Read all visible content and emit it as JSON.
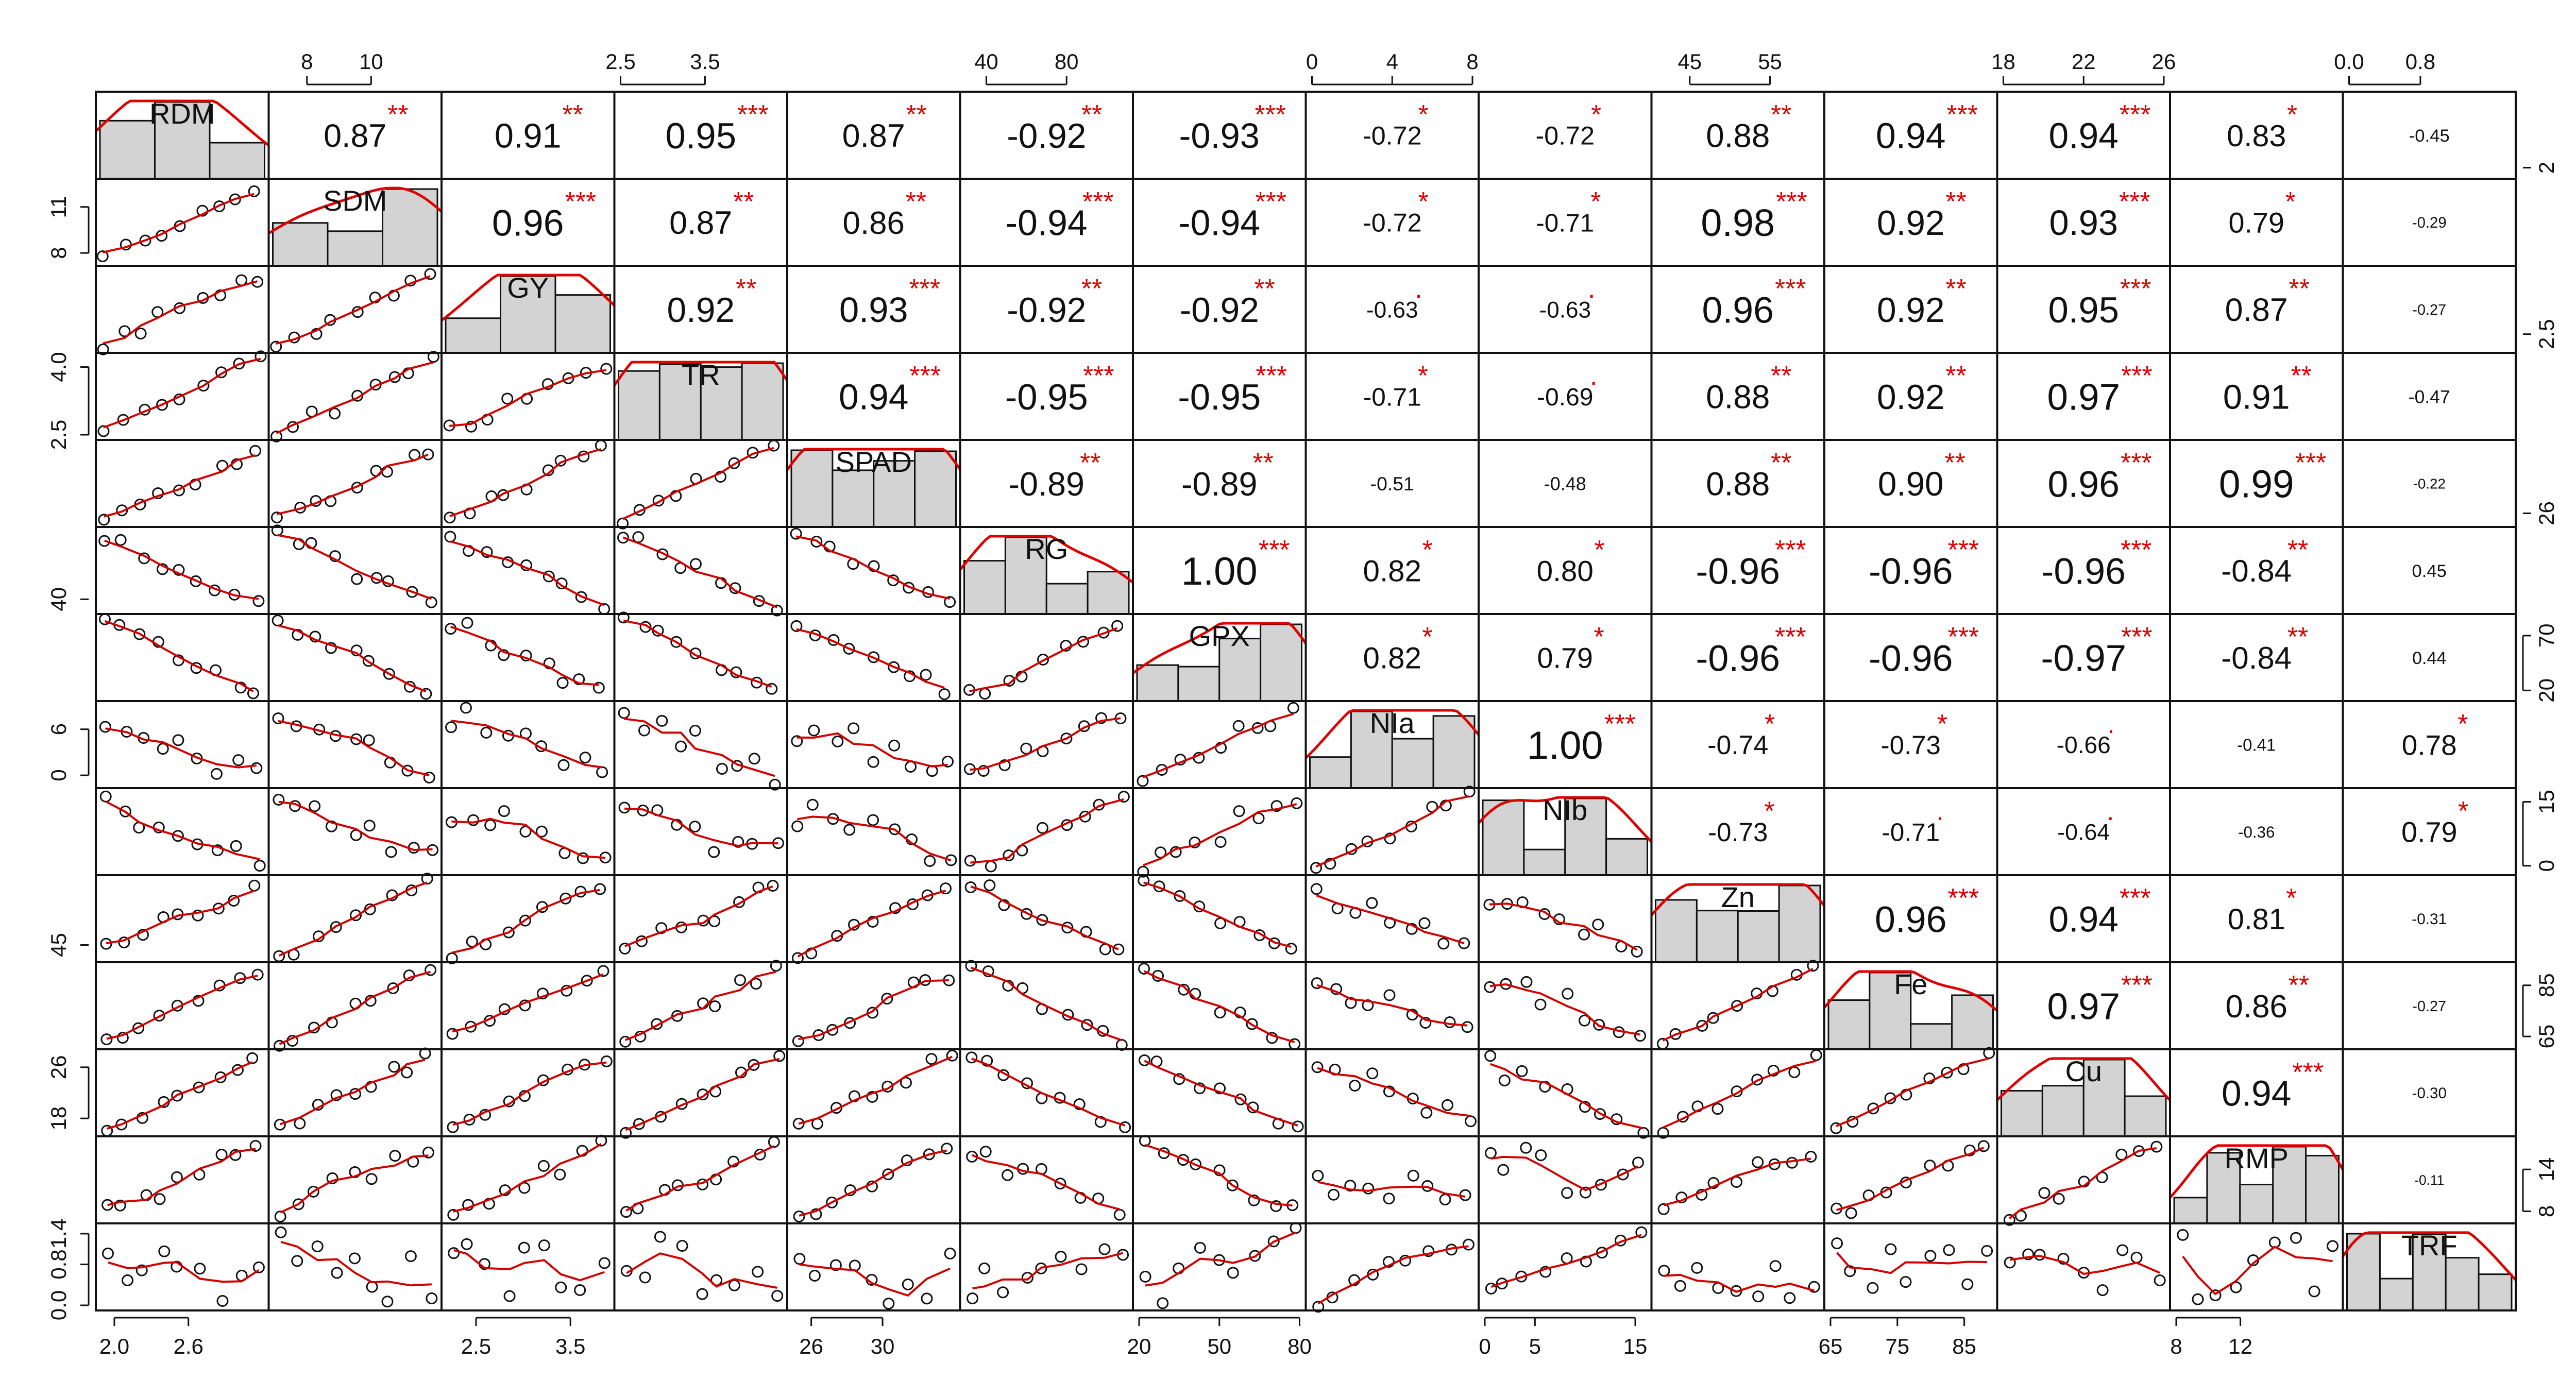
{
  "chart_data": {
    "type": "scatter-matrix",
    "variables": [
      "RDM",
      "SDM",
      "GY",
      "TR",
      "SPAD",
      "RG",
      "GPX",
      "NIa",
      "NIb",
      "Zn",
      "Fe",
      "Cu",
      "RMP",
      "TRF"
    ],
    "diag_labels": [
      "RDM",
      "SDM",
      "GY",
      "TR",
      "SPAD",
      "RG",
      "GPX",
      "NIa",
      "NIb",
      "Zn",
      "Fe",
      "Cu",
      "RMP",
      "TRF"
    ],
    "axes": {
      "top": [
        {
          "col": 1,
          "ticks": [
            8,
            10
          ],
          "range": [
            7,
            12
          ]
        },
        {
          "col": 3,
          "ticks": [
            2.5,
            3.5
          ],
          "range": [
            2.5,
            4.4
          ]
        },
        {
          "col": 5,
          "ticks": [
            40,
            80
          ],
          "range": [
            30,
            110
          ]
        },
        {
          "col": 7,
          "ticks": [
            0,
            4,
            8
          ],
          "range": [
            0,
            8
          ]
        },
        {
          "col": 9,
          "ticks": [
            45,
            55
          ],
          "range": [
            41,
            61
          ]
        },
        {
          "col": 11,
          "ticks": [
            18,
            22,
            26
          ],
          "range": [
            18,
            26
          ]
        },
        {
          "col": 13,
          "ticks": [
            0.0,
            0.8
          ],
          "range": [
            0,
            1.8
          ]
        }
      ],
      "bottom": [
        {
          "col": 0,
          "ticks": [
            2.0,
            2.6
          ],
          "range": [
            1.9,
            3.2
          ]
        },
        {
          "col": 2,
          "ticks": [
            2.5,
            3.5
          ],
          "range": [
            2.2,
            3.9
          ]
        },
        {
          "col": 4,
          "ticks": [
            26,
            30
          ],
          "range": [
            25,
            34
          ]
        },
        {
          "col": 6,
          "ticks": [
            20,
            50,
            80
          ],
          "range": [
            20,
            80
          ]
        },
        {
          "col": 8,
          "ticks": [
            0,
            5,
            15
          ],
          "range": [
            0,
            16
          ]
        },
        {
          "col": 10,
          "ticks": [
            65,
            75,
            85
          ],
          "range": [
            65,
            89
          ]
        },
        {
          "col": 12,
          "ticks": [
            8,
            12
          ],
          "range": [
            8,
            18
          ]
        }
      ],
      "left": [
        {
          "row": 1,
          "ticks": [
            8,
            11
          ],
          "range": [
            7.5,
            12.5
          ]
        },
        {
          "row": 3,
          "ticks": [
            2.5,
            4.0
          ],
          "range": [
            2.5,
            4.2
          ]
        },
        {
          "row": 5,
          "ticks": [
            40
          ],
          "range": [
            30,
            110
          ]
        },
        {
          "row": 7,
          "ticks": [
            0,
            6
          ],
          "range": [
            -1,
            9
          ]
        },
        {
          "row": 9,
          "ticks": [
            45
          ],
          "range": [
            42,
            61
          ]
        },
        {
          "row": 11,
          "ticks": [
            18,
            26
          ],
          "range": [
            16,
            28
          ]
        },
        {
          "row": 13,
          "ticks": [
            0.0,
            0.8,
            1.4
          ],
          "range": [
            0,
            1.5
          ]
        }
      ],
      "right": [
        {
          "row": 0,
          "ticks": [
            2.0
          ],
          "range": [
            1.9,
            3.2
          ]
        },
        {
          "row": 2,
          "ticks": [
            2.5
          ],
          "range": [
            2.2,
            3.9
          ]
        },
        {
          "row": 4,
          "ticks": [
            26
          ],
          "range": [
            25,
            34
          ]
        },
        {
          "row": 6,
          "ticks": [
            20,
            70
          ],
          "range": [
            15,
            85
          ]
        },
        {
          "row": 8,
          "ticks": [
            0,
            15
          ],
          "range": [
            -1,
            17
          ]
        },
        {
          "row": 10,
          "ticks": [
            65,
            85
          ],
          "range": [
            62,
            92
          ]
        },
        {
          "row": 12,
          "ticks": [
            8,
            14
          ],
          "range": [
            7,
            18
          ]
        }
      ]
    },
    "correlations": [
      {
        "i": 0,
        "j": 1,
        "r": "0.87",
        "sig": "**"
      },
      {
        "i": 0,
        "j": 2,
        "r": "0.91",
        "sig": "**"
      },
      {
        "i": 0,
        "j": 3,
        "r": "0.95",
        "sig": "***"
      },
      {
        "i": 0,
        "j": 4,
        "r": "0.87",
        "sig": "**"
      },
      {
        "i": 0,
        "j": 5,
        "r": "-0.92",
        "sig": "**"
      },
      {
        "i": 0,
        "j": 6,
        "r": "-0.93",
        "sig": "***"
      },
      {
        "i": 0,
        "j": 7,
        "r": "-0.72",
        "sig": "*"
      },
      {
        "i": 0,
        "j": 8,
        "r": "-0.72",
        "sig": "*"
      },
      {
        "i": 0,
        "j": 9,
        "r": "0.88",
        "sig": "**"
      },
      {
        "i": 0,
        "j": 10,
        "r": "0.94",
        "sig": "***"
      },
      {
        "i": 0,
        "j": 11,
        "r": "0.94",
        "sig": "***"
      },
      {
        "i": 0,
        "j": 12,
        "r": "0.83",
        "sig": "*"
      },
      {
        "i": 0,
        "j": 13,
        "r": "-0.45",
        "sig": ""
      },
      {
        "i": 1,
        "j": 2,
        "r": "0.96",
        "sig": "***"
      },
      {
        "i": 1,
        "j": 3,
        "r": "0.87",
        "sig": "**"
      },
      {
        "i": 1,
        "j": 4,
        "r": "0.86",
        "sig": "**"
      },
      {
        "i": 1,
        "j": 5,
        "r": "-0.94",
        "sig": "***"
      },
      {
        "i": 1,
        "j": 6,
        "r": "-0.94",
        "sig": "***"
      },
      {
        "i": 1,
        "j": 7,
        "r": "-0.72",
        "sig": "*"
      },
      {
        "i": 1,
        "j": 8,
        "r": "-0.71",
        "sig": "*"
      },
      {
        "i": 1,
        "j": 9,
        "r": "0.98",
        "sig": "***"
      },
      {
        "i": 1,
        "j": 10,
        "r": "0.92",
        "sig": "**"
      },
      {
        "i": 1,
        "j": 11,
        "r": "0.93",
        "sig": "***"
      },
      {
        "i": 1,
        "j": 12,
        "r": "0.79",
        "sig": "*"
      },
      {
        "i": 1,
        "j": 13,
        "r": "-0.29",
        "sig": ""
      },
      {
        "i": 2,
        "j": 3,
        "r": "0.92",
        "sig": "**"
      },
      {
        "i": 2,
        "j": 4,
        "r": "0.93",
        "sig": "***"
      },
      {
        "i": 2,
        "j": 5,
        "r": "-0.92",
        "sig": "**"
      },
      {
        "i": 2,
        "j": 6,
        "r": "-0.92",
        "sig": "**"
      },
      {
        "i": 2,
        "j": 7,
        "r": "-0.63",
        "sig": "."
      },
      {
        "i": 2,
        "j": 8,
        "r": "-0.63",
        "sig": "."
      },
      {
        "i": 2,
        "j": 9,
        "r": "0.96",
        "sig": "***"
      },
      {
        "i": 2,
        "j": 10,
        "r": "0.92",
        "sig": "**"
      },
      {
        "i": 2,
        "j": 11,
        "r": "0.95",
        "sig": "***"
      },
      {
        "i": 2,
        "j": 12,
        "r": "0.87",
        "sig": "**"
      },
      {
        "i": 2,
        "j": 13,
        "r": "-0.27",
        "sig": ""
      },
      {
        "i": 3,
        "j": 4,
        "r": "0.94",
        "sig": "***"
      },
      {
        "i": 3,
        "j": 5,
        "r": "-0.95",
        "sig": "***"
      },
      {
        "i": 3,
        "j": 6,
        "r": "-0.95",
        "sig": "***"
      },
      {
        "i": 3,
        "j": 7,
        "r": "-0.71",
        "sig": "*"
      },
      {
        "i": 3,
        "j": 8,
        "r": "-0.69",
        "sig": "."
      },
      {
        "i": 3,
        "j": 9,
        "r": "0.88",
        "sig": "**"
      },
      {
        "i": 3,
        "j": 10,
        "r": "0.92",
        "sig": "**"
      },
      {
        "i": 3,
        "j": 11,
        "r": "0.97",
        "sig": "***"
      },
      {
        "i": 3,
        "j": 12,
        "r": "0.91",
        "sig": "**"
      },
      {
        "i": 3,
        "j": 13,
        "r": "-0.47",
        "sig": ""
      },
      {
        "i": 4,
        "j": 5,
        "r": "-0.89",
        "sig": "**"
      },
      {
        "i": 4,
        "j": 6,
        "r": "-0.89",
        "sig": "**"
      },
      {
        "i": 4,
        "j": 7,
        "r": "-0.51",
        "sig": ""
      },
      {
        "i": 4,
        "j": 8,
        "r": "-0.48",
        "sig": ""
      },
      {
        "i": 4,
        "j": 9,
        "r": "0.88",
        "sig": "**"
      },
      {
        "i": 4,
        "j": 10,
        "r": "0.90",
        "sig": "**"
      },
      {
        "i": 4,
        "j": 11,
        "r": "0.96",
        "sig": "***"
      },
      {
        "i": 4,
        "j": 12,
        "r": "0.99",
        "sig": "***"
      },
      {
        "i": 4,
        "j": 13,
        "r": "-0.22",
        "sig": ""
      },
      {
        "i": 5,
        "j": 6,
        "r": "1.00",
        "sig": "***"
      },
      {
        "i": 5,
        "j": 7,
        "r": "0.82",
        "sig": "*"
      },
      {
        "i": 5,
        "j": 8,
        "r": "0.80",
        "sig": "*"
      },
      {
        "i": 5,
        "j": 9,
        "r": "-0.96",
        "sig": "***"
      },
      {
        "i": 5,
        "j": 10,
        "r": "-0.96",
        "sig": "***"
      },
      {
        "i": 5,
        "j": 11,
        "r": "-0.96",
        "sig": "***"
      },
      {
        "i": 5,
        "j": 12,
        "r": "-0.84",
        "sig": "**"
      },
      {
        "i": 5,
        "j": 13,
        "r": "0.45",
        "sig": ""
      },
      {
        "i": 6,
        "j": 7,
        "r": "0.82",
        "sig": "*"
      },
      {
        "i": 6,
        "j": 8,
        "r": "0.79",
        "sig": "*"
      },
      {
        "i": 6,
        "j": 9,
        "r": "-0.96",
        "sig": "***"
      },
      {
        "i": 6,
        "j": 10,
        "r": "-0.96",
        "sig": "***"
      },
      {
        "i": 6,
        "j": 11,
        "r": "-0.97",
        "sig": "***"
      },
      {
        "i": 6,
        "j": 12,
        "r": "-0.84",
        "sig": "**"
      },
      {
        "i": 6,
        "j": 13,
        "r": "0.44",
        "sig": ""
      },
      {
        "i": 7,
        "j": 8,
        "r": "1.00",
        "sig": "***"
      },
      {
        "i": 7,
        "j": 9,
        "r": "-0.74",
        "sig": "*"
      },
      {
        "i": 7,
        "j": 10,
        "r": "-0.73",
        "sig": "*"
      },
      {
        "i": 7,
        "j": 11,
        "r": "-0.66",
        "sig": "."
      },
      {
        "i": 7,
        "j": 12,
        "r": "-0.41",
        "sig": ""
      },
      {
        "i": 7,
        "j": 13,
        "r": "0.78",
        "sig": "*"
      },
      {
        "i": 8,
        "j": 9,
        "r": "-0.73",
        "sig": "*"
      },
      {
        "i": 8,
        "j": 10,
        "r": "-0.71",
        "sig": "."
      },
      {
        "i": 8,
        "j": 11,
        "r": "-0.64",
        "sig": "."
      },
      {
        "i": 8,
        "j": 12,
        "r": "-0.36",
        "sig": ""
      },
      {
        "i": 8,
        "j": 13,
        "r": "0.79",
        "sig": "*"
      },
      {
        "i": 9,
        "j": 10,
        "r": "0.96",
        "sig": "***"
      },
      {
        "i": 9,
        "j": 11,
        "r": "0.94",
        "sig": "***"
      },
      {
        "i": 9,
        "j": 12,
        "r": "0.81",
        "sig": "*"
      },
      {
        "i": 9,
        "j": 13,
        "r": "-0.31",
        "sig": ""
      },
      {
        "i": 10,
        "j": 11,
        "r": "0.97",
        "sig": "***"
      },
      {
        "i": 10,
        "j": 12,
        "r": "0.86",
        "sig": "**"
      },
      {
        "i": 10,
        "j": 13,
        "r": "-0.27",
        "sig": ""
      },
      {
        "i": 11,
        "j": 12,
        "r": "0.94",
        "sig": "***"
      },
      {
        "i": 11,
        "j": 13,
        "r": "-0.30",
        "sig": ""
      },
      {
        "i": 12,
        "j": 13,
        "r": "-0.11",
        "sig": ""
      }
    ],
    "grid": false,
    "legend": "none",
    "colors": {
      "smooth_line": "#d40000",
      "density_line": "#e00000",
      "stars": "#e00000",
      "histogram_fill": "#d3d3d3",
      "text": "#111111"
    }
  }
}
